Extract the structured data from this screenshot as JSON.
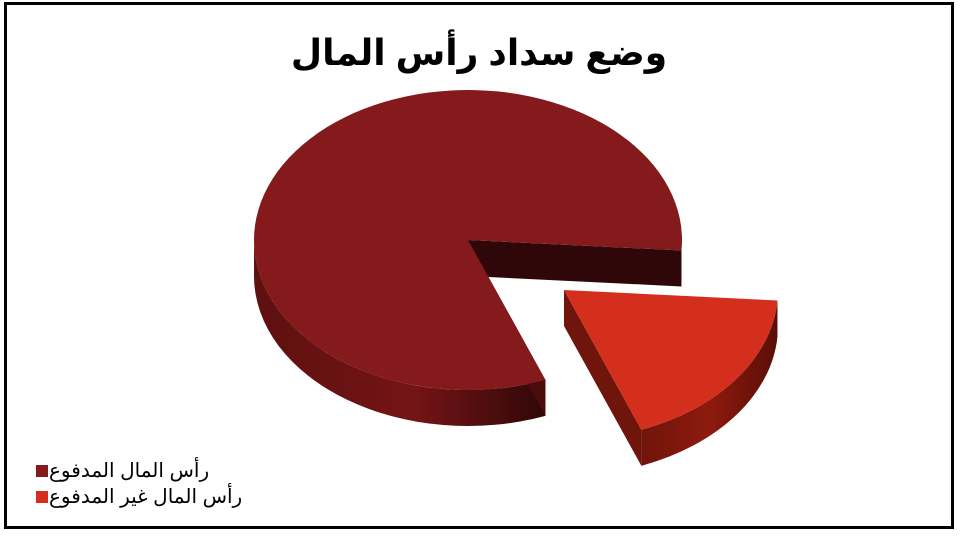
{
  "chart_data": {
    "type": "pie",
    "title": "وضع سداد رأس المال",
    "style": "3d-exploded",
    "categories": [
      "رأس المال المدفوع",
      "رأس المال غير المدفوع"
    ],
    "values": [
      0.82,
      0.18
    ],
    "colors": {
      "paid_top": "#841A1C",
      "paid_side": "#5E1010",
      "paid_inner": "#300708",
      "unpaid_top": "#D42F1C",
      "unpaid_side": "#8E1A0E",
      "unpaid_inner": "#6F150B"
    },
    "legend_position": "bottom-left"
  },
  "legend": {
    "items": [
      {
        "label": "رأس المال المدفوع",
        "color": "#841A1C"
      },
      {
        "label": "رأس المال غير المدفوع",
        "color": "#D42F1C"
      }
    ]
  }
}
